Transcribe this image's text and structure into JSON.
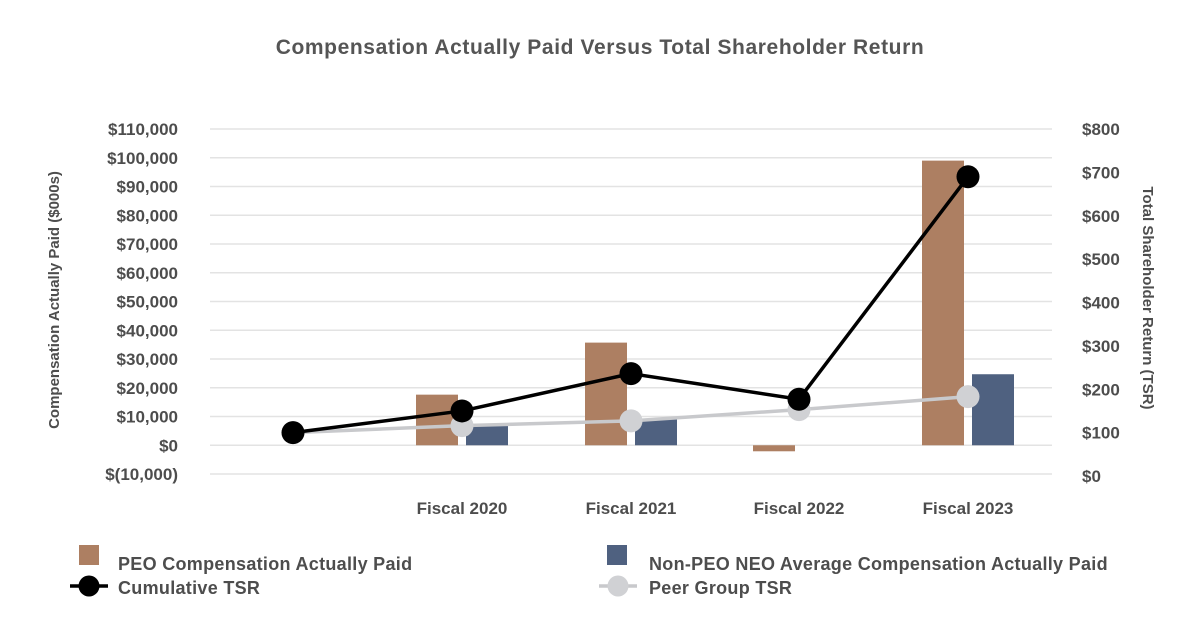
{
  "chart_data": {
    "type": "bar",
    "title": "Compensation Actually Paid Versus Total Shareholder Return",
    "categories": [
      "",
      "Fiscal 2020",
      "Fiscal 2021",
      "Fiscal 2022",
      "Fiscal 2023"
    ],
    "ylabel": "Compensation Actually Paid ($000s)",
    "y2label": "Total Shareholder Return (TSR)",
    "ylim": [
      -10000,
      110000
    ],
    "y2lim": [
      0,
      800
    ],
    "y_ticks": [
      110000,
      100000,
      90000,
      80000,
      70000,
      60000,
      50000,
      40000,
      30000,
      20000,
      10000,
      0,
      -10000
    ],
    "y_tick_labels": [
      "$110,000",
      "$100,000",
      "$90,000",
      "$80,000",
      "$70,000",
      "$60,000",
      "$50,000",
      "$40,000",
      "$30,000",
      "$20,000",
      "$10,000",
      "$0",
      "$(10,000)"
    ],
    "y2_ticks": [
      800,
      700,
      600,
      500,
      400,
      300,
      200,
      100,
      0
    ],
    "y2_tick_labels": [
      "$800",
      "$700",
      "$600",
      "$500",
      "$400",
      "$300",
      "$200",
      "$100",
      "$0"
    ],
    "grid": true,
    "legend_position": "bottom",
    "series": [
      {
        "name": "PEO Compensation Actually Paid",
        "kind": "bar",
        "axis": "left",
        "color": "#ad7f62",
        "values": [
          null,
          17600,
          35700,
          -2100,
          99000
        ]
      },
      {
        "name": "Non-PEO NEO Average Compensation Actually Paid",
        "kind": "bar",
        "axis": "left",
        "color": "#4f6180",
        "values": [
          null,
          6800,
          9200,
          null,
          24700
        ]
      },
      {
        "name": "Cumulative TSR",
        "kind": "line",
        "axis": "right",
        "color": "#000000",
        "marker_color": "#000000",
        "values": [
          100,
          150,
          236,
          177,
          690
        ]
      },
      {
        "name": "Peer Group TSR",
        "kind": "line",
        "axis": "right",
        "color": "#c8c9cc",
        "marker_color": "#d0d1d4",
        "values": [
          100,
          116,
          127,
          153,
          183
        ]
      }
    ]
  }
}
